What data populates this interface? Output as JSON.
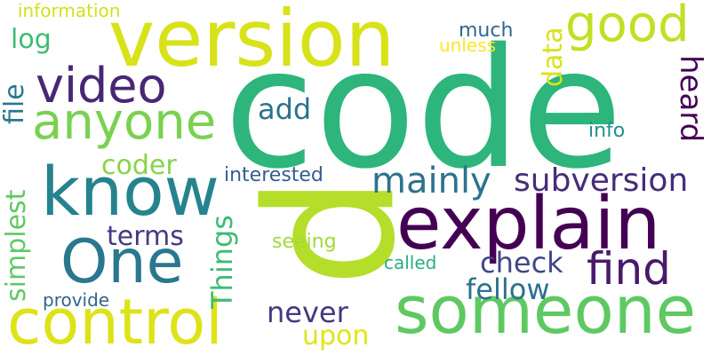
{
  "background": "#ffffff",
  "words": [
    {
      "text": "code",
      "color": "#2db57c",
      "key": "code"
    },
    {
      "text": "p",
      "color": "#b5de2b",
      "key": "p"
    },
    {
      "text": "version",
      "color": "#d8e219",
      "key": "version"
    },
    {
      "text": "explain",
      "color": "#440154",
      "key": "explain"
    },
    {
      "text": "know",
      "color": "#25838e",
      "key": "know"
    },
    {
      "text": "someone",
      "color": "#5ec962",
      "key": "someone"
    },
    {
      "text": "control",
      "color": "#dde318",
      "key": "control"
    },
    {
      "text": "One",
      "color": "#2a788e",
      "key": "one"
    },
    {
      "text": "anyone",
      "color": "#7ad151",
      "key": "anyone"
    },
    {
      "text": "video",
      "color": "#482677",
      "key": "video"
    },
    {
      "text": "good",
      "color": "#c2df23",
      "key": "good"
    },
    {
      "text": "find",
      "color": "#481a6c",
      "key": "find"
    },
    {
      "text": "mainly",
      "color": "#2c728e",
      "key": "mainly"
    },
    {
      "text": "subversion",
      "color": "#472c7a",
      "key": "subversion"
    },
    {
      "text": "data",
      "color": "#d8e219",
      "key": "data"
    },
    {
      "text": "heard",
      "color": "#440154",
      "key": "heard"
    },
    {
      "text": "add",
      "color": "#2c718e",
      "key": "add"
    },
    {
      "text": "log",
      "color": "#3dbc74",
      "key": "log"
    },
    {
      "text": "file",
      "color": "#2a768e",
      "key": "file"
    },
    {
      "text": "coder",
      "color": "#86d549",
      "key": "coder"
    },
    {
      "text": "terms",
      "color": "#443a83",
      "key": "terms"
    },
    {
      "text": "simplest",
      "color": "#5ec962",
      "key": "simplest"
    },
    {
      "text": "Things",
      "color": "#3dbc74",
      "key": "things"
    },
    {
      "text": "check",
      "color": "#3f4788",
      "key": "check"
    },
    {
      "text": "fellow",
      "color": "#2d708e",
      "key": "fellow"
    },
    {
      "text": "never",
      "color": "#453781",
      "key": "never"
    },
    {
      "text": "upon",
      "color": "#e2e418",
      "key": "upon"
    },
    {
      "text": "seeing",
      "color": "#a0da39",
      "key": "seeing"
    },
    {
      "text": "called",
      "color": "#29af7f",
      "key": "called"
    },
    {
      "text": "interested",
      "color": "#365c8d",
      "key": "interested"
    },
    {
      "text": "provide",
      "color": "#33638d",
      "key": "provide"
    },
    {
      "text": "info",
      "color": "#21908d",
      "key": "info"
    },
    {
      "text": "much",
      "color": "#31688e",
      "key": "much"
    },
    {
      "text": "unless",
      "color": "#fde725",
      "key": "unless"
    },
    {
      "text": "information",
      "color": "#d0e11c",
      "key": "information"
    }
  ]
}
